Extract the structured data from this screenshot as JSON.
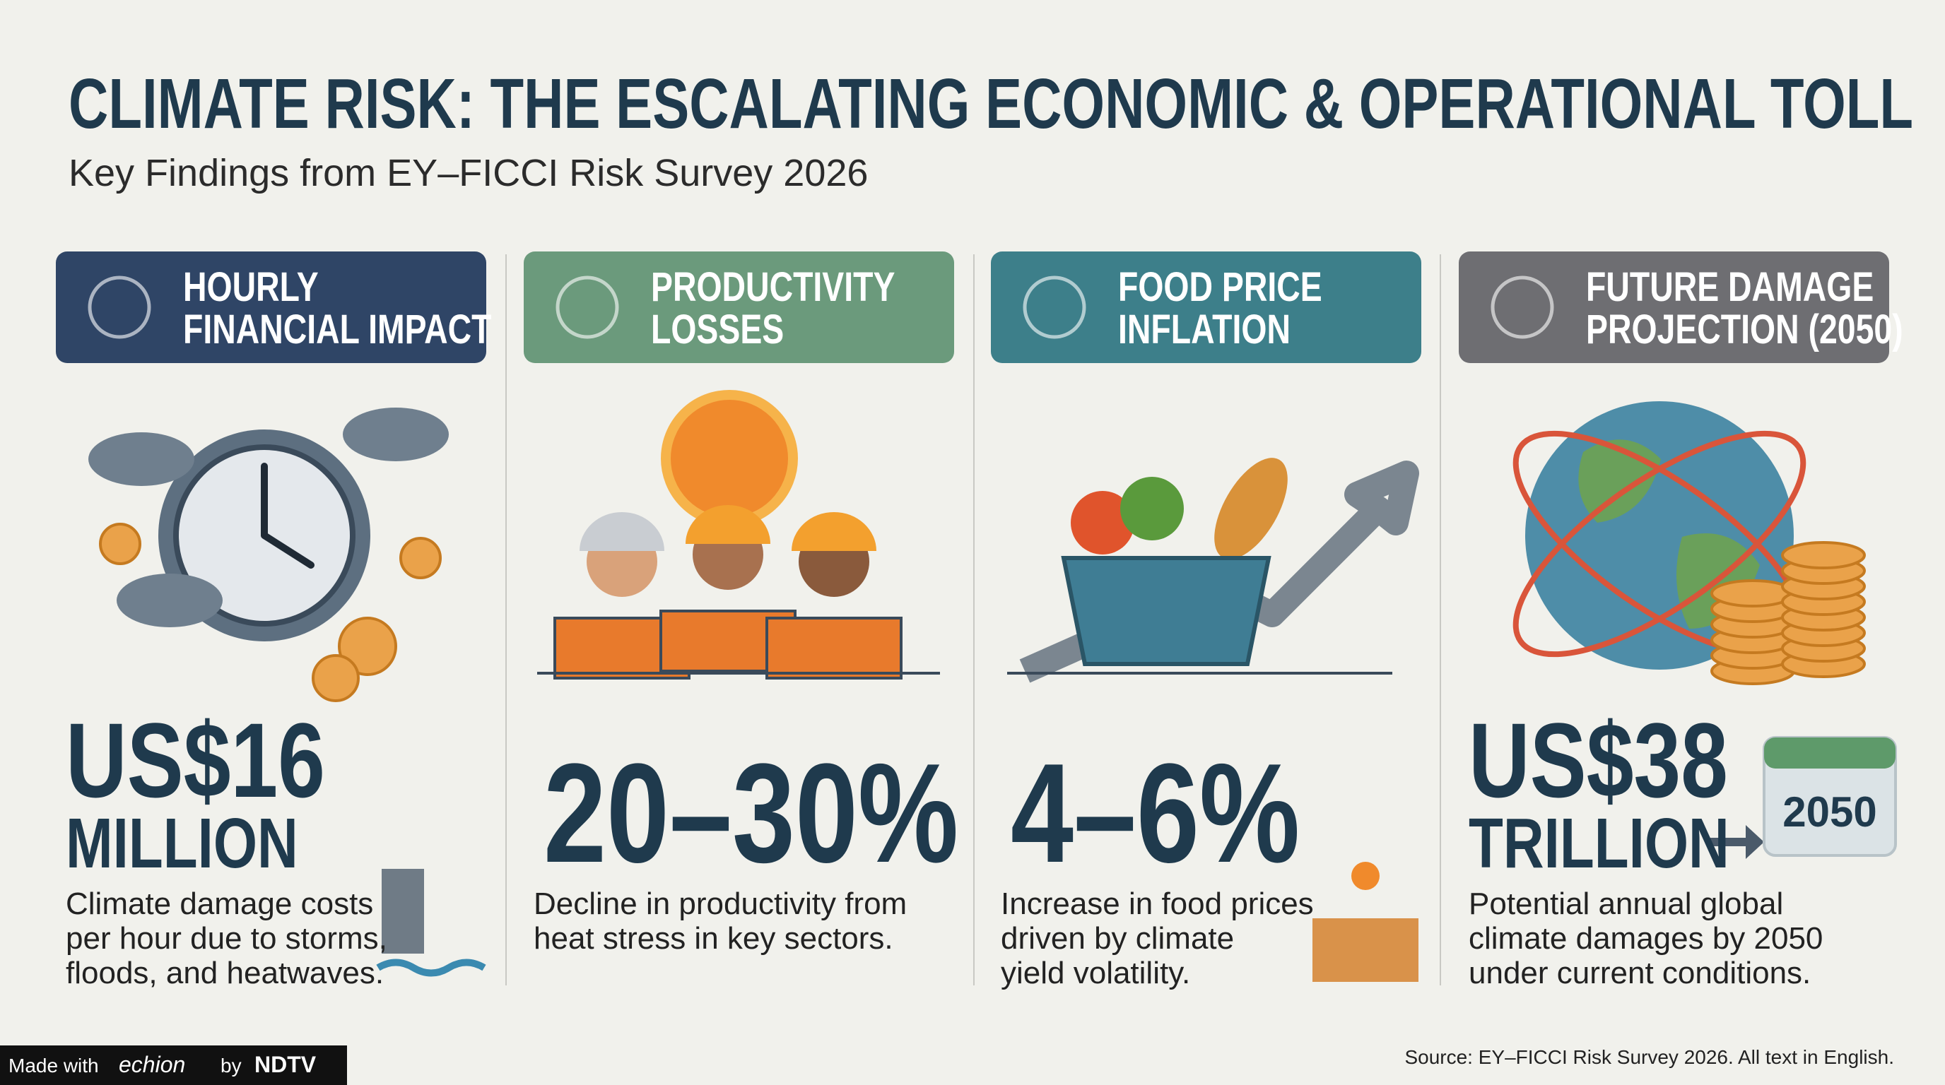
{
  "header": {
    "title": "CLIMATE RISK: THE ESCALATING ECONOMIC & OPERATIONAL TOLL",
    "subtitle": "Key Findings from EY–FICCI Risk Survey 2026"
  },
  "columns": [
    {
      "heading": [
        "HOURLY",
        "FINANCIAL IMPACT"
      ],
      "stat": [
        "US$16",
        "MILLION"
      ],
      "description": [
        "Climate damage costs",
        "per hour due to storms,",
        "floods, and heatwaves."
      ]
    },
    {
      "heading": [
        "PRODUCTIVITY",
        "LOSSES"
      ],
      "stat": [
        "20–30%"
      ],
      "description": [
        "Decline in productivity from",
        "heat stress in key sectors."
      ]
    },
    {
      "heading": [
        "FOOD PRICE",
        "INFLATION"
      ],
      "stat": [
        "4–6%"
      ],
      "description": [
        "Increase in food prices",
        "driven by climate",
        "yield volatility."
      ]
    },
    {
      "heading": [
        "FUTURE DAMAGE",
        "PROJECTION (2050)"
      ],
      "stat": [
        "US$38",
        "TRILLION"
      ],
      "description": [
        "Potential annual global",
        "climate damages by 2050",
        "under current conditions."
      ],
      "calendar": "2050"
    }
  ],
  "footer": {
    "source": "Source: EY–FICCI Risk Survey 2026. All text in English.",
    "badge": [
      "Made with",
      "echion",
      "by",
      "NDTV"
    ]
  }
}
